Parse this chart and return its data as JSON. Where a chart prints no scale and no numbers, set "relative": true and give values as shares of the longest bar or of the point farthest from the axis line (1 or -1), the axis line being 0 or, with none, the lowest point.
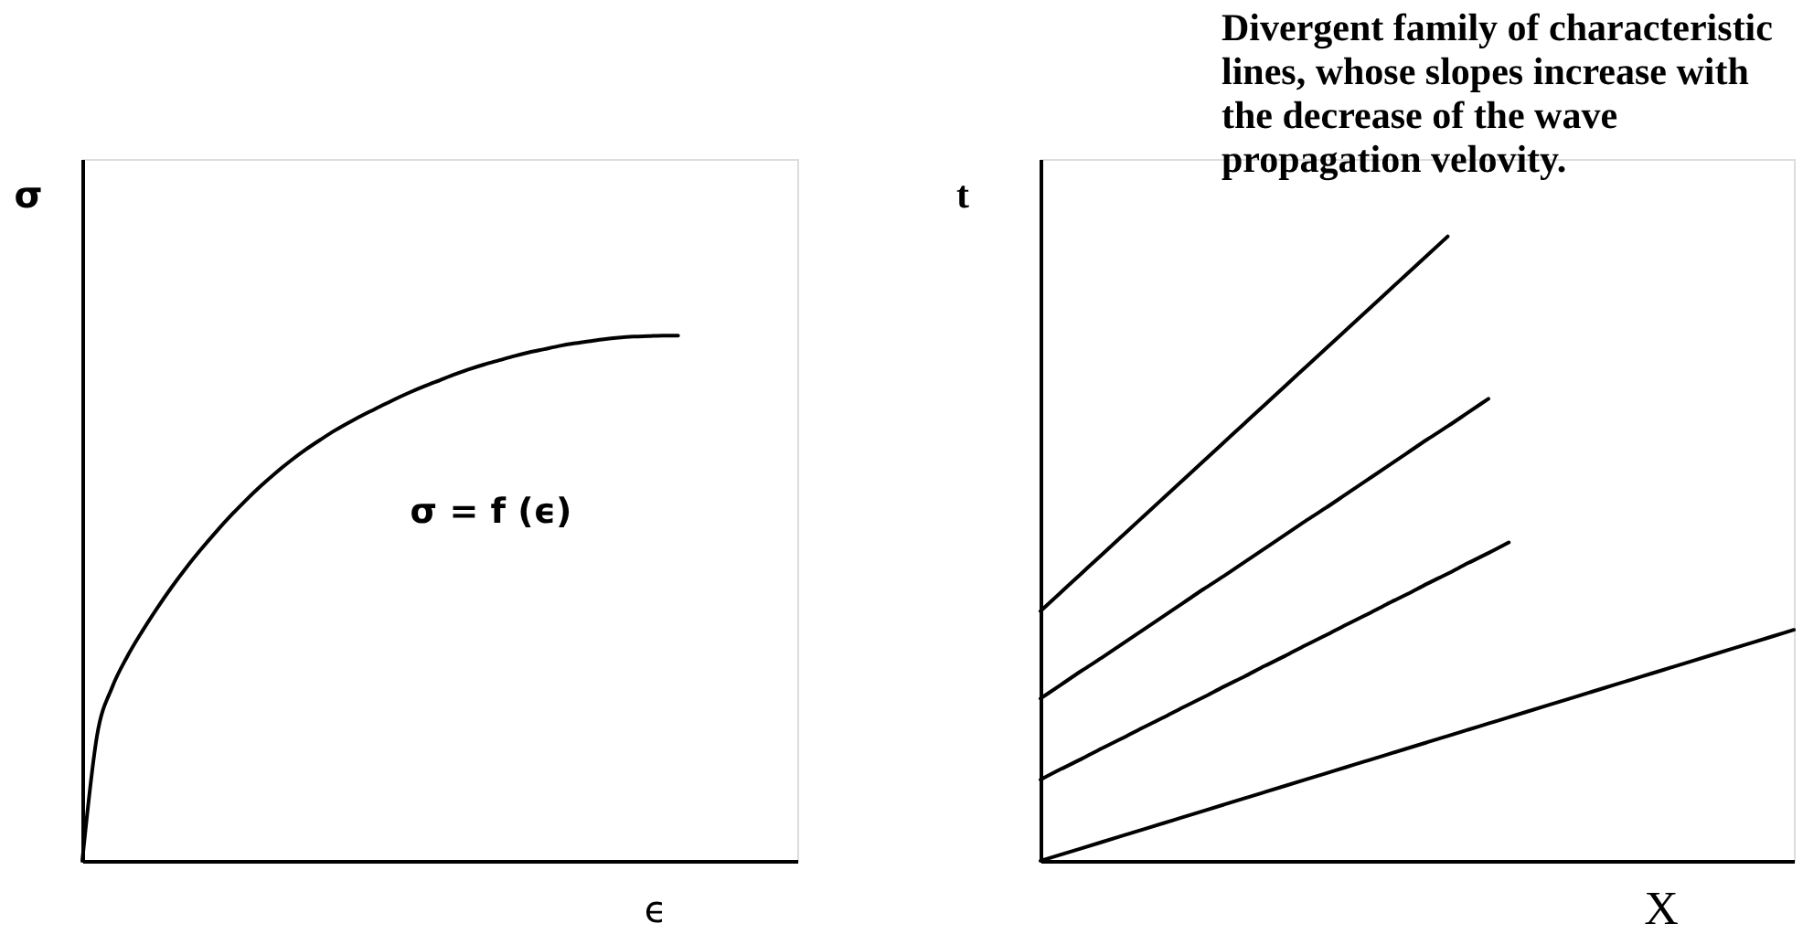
{
  "chart_data": [
    {
      "type": "line",
      "ylabel": "σ",
      "xlabel": "ϵ",
      "relative": true,
      "tick_labels": false,
      "categories": [
        null,
        null,
        null,
        null,
        null,
        null,
        null,
        null,
        null,
        null,
        null,
        null,
        null,
        null,
        null,
        null,
        null,
        null,
        null,
        null,
        null,
        null,
        null,
        null,
        null,
        null,
        null,
        null,
        null,
        null,
        null,
        null,
        null,
        null,
        null,
        null,
        null,
        null,
        null,
        null,
        null,
        null,
        null,
        null,
        null,
        null,
        null,
        null,
        null
      ],
      "series": [
        {
          "name": "σ = f (ϵ)",
          "color": "#000000",
          "values": [
            0,
            0.24,
            0.33,
            0.388,
            0.436,
            0.48,
            0.521,
            0.559,
            0.594,
            0.627,
            0.658,
            0.687,
            0.714,
            0.739,
            0.762,
            0.783,
            0.802,
            0.82,
            0.836,
            0.851,
            0.865,
            0.879,
            0.892,
            0.904,
            0.915,
            0.926,
            0.936,
            0.945,
            0.953,
            0.961,
            0.968,
            0.974,
            0.98,
            0.985,
            0.989,
            0.993,
            0.996,
            0.998,
            0.999,
            1,
            1,
            null,
            null,
            null,
            null,
            null,
            null,
            null,
            null
          ]
        }
      ]
    },
    {
      "type": "line",
      "ylabel": "t",
      "xlabel": "X",
      "relative": true,
      "tick_labels": false,
      "annotations": [
        "Divergent family of characteristic lines, whose slopes increase with the decrease of the wave propagation velovity."
      ],
      "categories": [
        null,
        null,
        null,
        null,
        null,
        null,
        null,
        null,
        null,
        null,
        null,
        null,
        null,
        null,
        null,
        null,
        null,
        null,
        null,
        null,
        null,
        null,
        null,
        null,
        null,
        null,
        null,
        null,
        null,
        null,
        null,
        null,
        null,
        null,
        null,
        null,
        null,
        null
      ],
      "series": [
        {
          "color": "#000000",
          "values": [
            0,
            0.01,
            0.02,
            0.03,
            0.04,
            0.05,
            0.06,
            0.07,
            0.08,
            0.09,
            0.1,
            0.11,
            0.12,
            0.13,
            0.14,
            0.15,
            0.16,
            0.17,
            0.18,
            0.19,
            0.2,
            0.21,
            0.22,
            0.23,
            0.24,
            0.25,
            0.26,
            0.27,
            0.28,
            0.29,
            0.3,
            0.31,
            0.32,
            0.33,
            0.34,
            0.35,
            0.36,
            0.37
          ]
        },
        {
          "color": "#000000",
          "values": [
            0.13,
            0.147,
            0.163,
            0.18,
            0.196,
            0.213,
            0.229,
            0.246,
            0.262,
            0.279,
            0.295,
            0.312,
            0.328,
            0.345,
            0.361,
            0.378,
            0.394,
            0.411,
            0.427,
            0.444,
            0.46,
            0.477,
            0.493,
            0.51,
            null,
            null,
            null,
            null,
            null,
            null,
            null,
            null,
            null,
            null,
            null,
            null,
            null,
            null
          ]
        },
        {
          "color": "#000000",
          "values": [
            0.26,
            0.282,
            0.304,
            0.325,
            0.347,
            0.369,
            0.391,
            0.413,
            0.435,
            0.456,
            0.478,
            0.5,
            0.522,
            0.544,
            0.565,
            0.587,
            0.609,
            0.631,
            0.653,
            0.675,
            0.696,
            0.718,
            0.74,
            null,
            null,
            null,
            null,
            null,
            null,
            null,
            null,
            null,
            null,
            null,
            null,
            null,
            null,
            null
          ]
        },
        {
          "color": "#000000",
          "values": [
            0.4,
            0.43,
            0.46,
            0.49,
            0.52,
            0.55,
            0.58,
            0.61,
            0.64,
            0.67,
            0.7,
            0.73,
            0.76,
            0.79,
            0.82,
            0.85,
            0.88,
            0.91,
            0.94,
            0.97,
            1,
            null,
            null,
            null,
            null,
            null,
            null,
            null,
            null,
            null,
            null,
            null,
            null,
            null,
            null,
            null,
            null,
            null
          ]
        }
      ]
    }
  ]
}
